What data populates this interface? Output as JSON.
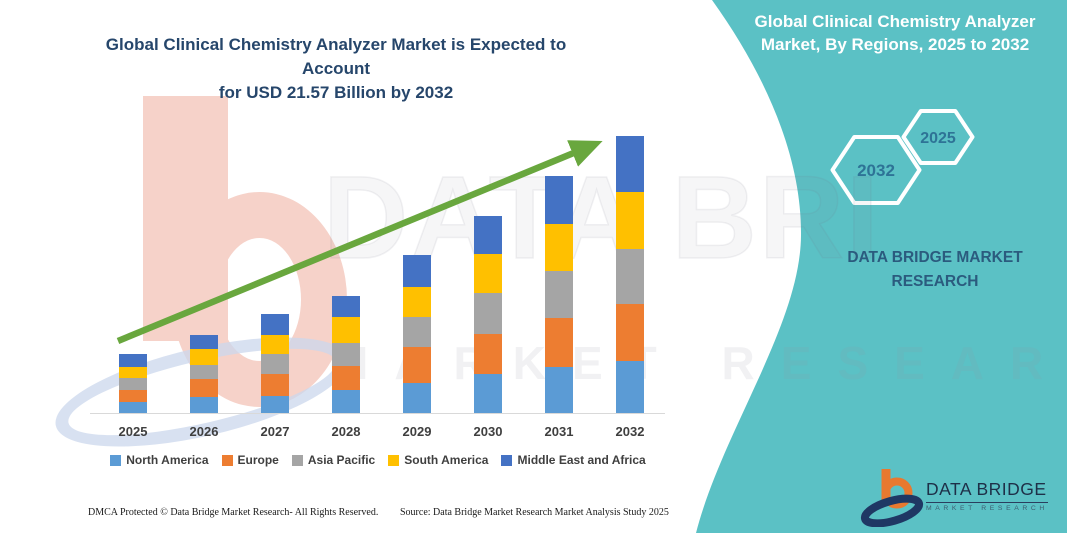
{
  "page": {
    "background": "#FFFFFF",
    "accent_teal": "#5BC1C5",
    "arrow_green": "#69A73E"
  },
  "left_panel": {
    "title_line1": "Global Clinical Chemistry Analyzer Market is Expected to Account",
    "title_line2": "for  USD 21.57 Billion by 2032"
  },
  "right_panel": {
    "title_line1": "Global Clinical Chemistry Analyzer",
    "title_line2": "Market, By Regions, 2025 to 2032",
    "hexagons": [
      {
        "label": "2032"
      },
      {
        "label": "2025"
      }
    ],
    "brand_line1": "DATA BRIDGE MARKET",
    "brand_line2": "RESEARCH"
  },
  "watermark": {
    "word1": "DATA BRI",
    "word2": "MARKET RESEARCH"
  },
  "logo": {
    "name": "DATA BRIDGE",
    "subtitle": "MARKET RESEARCH"
  },
  "footer": {
    "left": "DMCA Protected © Data Bridge Market Research-  All Rights Reserved.",
    "source": "Source: Data Bridge Market Research  Market Analysis Study 2025"
  },
  "chart_data": {
    "type": "bar",
    "stacked": true,
    "title": "Global Clinical Chemistry Analyzer Market is Expected to Account for USD 21.57 Billion by 2032",
    "unit": "USD Billion",
    "values_estimated_from_bar_heights": true,
    "categories": [
      "2025",
      "2026",
      "2027",
      "2028",
      "2029",
      "2030",
      "2031",
      "2032"
    ],
    "series": [
      {
        "name": "North America",
        "color": "#5B9BD5",
        "values": [
          0.84,
          1.24,
          1.36,
          1.81,
          2.34,
          3.04,
          3.62,
          4.08
        ]
      },
      {
        "name": "Europe",
        "color": "#ED7D31",
        "values": [
          0.97,
          1.44,
          1.65,
          1.87,
          2.8,
          3.1,
          3.8,
          4.43
        ]
      },
      {
        "name": "Asia Pacific",
        "color": "#A5A5A5",
        "values": [
          0.92,
          1.1,
          1.62,
          1.77,
          2.34,
          3.23,
          3.64,
          4.3
        ]
      },
      {
        "name": "South America",
        "color": "#FFC000",
        "values": [
          0.87,
          1.2,
          1.44,
          2.02,
          2.31,
          3.02,
          3.7,
          4.42
        ]
      },
      {
        "name": "Middle East and Africa",
        "color": "#4472C4",
        "values": [
          0.99,
          1.09,
          1.64,
          1.64,
          2.51,
          2.95,
          3.7,
          4.34
        ]
      }
    ],
    "totals": [
      4.59,
      6.07,
      7.71,
      9.11,
      12.3,
      15.34,
      18.46,
      21.57
    ],
    "highlight_total_2032": "USD 21.57 Billion",
    "trend_arrow": true,
    "legend_position": "bottom",
    "gridlines": false,
    "xlabel": "",
    "ylabel": ""
  }
}
